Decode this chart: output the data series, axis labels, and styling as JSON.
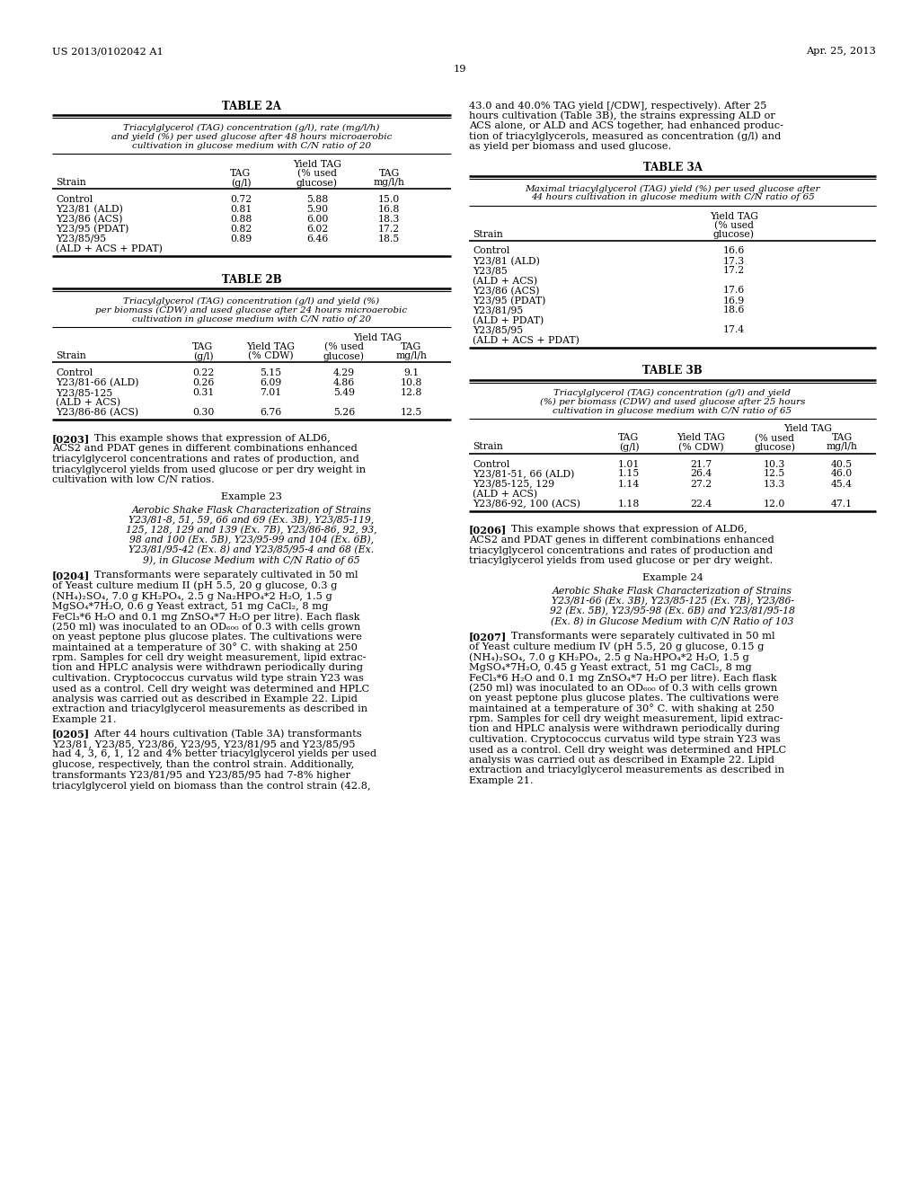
{
  "header_left": "US 2013/0102042 A1",
  "header_right": "Apr. 25, 2013",
  "page_number": "19",
  "background_color": "#ffffff",
  "table2a_title": "TABLE 2A",
  "table2a_subtitle_lines": [
    "Triacylglycerol (TAG) concentration (g/l), rate (mg/l/h)",
    "and yield (%) per used glucose after 48 hours microaerobic",
    "cultivation in glucose medium with C/N ratio of 20"
  ],
  "table2a_rows": [
    [
      "Control",
      "0.72",
      "5.88",
      "15.0"
    ],
    [
      "Y23/81 (ALD)",
      "0.81",
      "5.90",
      "16.8"
    ],
    [
      "Y23/86 (ACS)",
      "0.88",
      "6.00",
      "18.3"
    ],
    [
      "Y23/95 (PDAT)",
      "0.82",
      "6.02",
      "17.2"
    ],
    [
      "Y23/85/95",
      "0.89",
      "6.46",
      "18.5"
    ],
    [
      "(ALD + ACS + PDAT)",
      "",
      "",
      ""
    ]
  ],
  "table2b_title": "TABLE 2B",
  "table2b_subtitle_lines": [
    "Triacylglycerol (TAG) concentration (g/l) and yield (%)",
    "per biomass (CDW) and used glucose after 24 hours microaerobic",
    "cultivation in glucose medium with C/N ratio of 20"
  ],
  "table2b_rows": [
    [
      "Control",
      "0.22",
      "5.15",
      "4.29",
      "9.1"
    ],
    [
      "Y23/81-66 (ALD)",
      "0.26",
      "6.09",
      "4.86",
      "10.8"
    ],
    [
      "Y23/85-125",
      "0.31",
      "7.01",
      "5.49",
      "12.8"
    ],
    [
      "(ALD + ACS)",
      "",
      "",
      "",
      ""
    ],
    [
      "Y23/86-86 (ACS)",
      "0.30",
      "6.76",
      "5.26",
      "12.5"
    ]
  ],
  "para0203_lines": [
    "[0203]   This example shows that expression of ALD6,",
    "ACS2 and PDAT genes in different combinations enhanced",
    "triacylglycerol concentrations and rates of production, and",
    "triacylglycerol yields from used glucose or per dry weight in",
    "cultivation with low C/N ratios."
  ],
  "example23_title": "Example 23",
  "example23_lines": [
    "Aerobic Shake Flask Characterization of Strains",
    "Y23/81-8, 51, 59, 66 and 69 (Ex. 3B), Y23/85-119,",
    "125, 128, 129 and 139 (Ex. 7B), Y23/86-86, 92, 93,",
    "98 and 100 (Ex. 5B), Y23/95-99 and 104 (Ex. 6B),",
    "Y23/81/95-42 (Ex. 8) and Y23/85/95-4 and 68 (Ex.",
    "9), in Glucose Medium with C/N Ratio of 65"
  ],
  "para0204_lines": [
    "[0204]   Transformants were separately cultivated in 50 ml",
    "of Yeast culture medium II (pH 5.5, 20 g glucose, 0.3 g",
    "(NH₄)₂SO₄, 7.0 g KH₂PO₄, 2.5 g Na₂HPO₄*2 H₂O, 1.5 g",
    "MgSO₄*7H₂O, 0.6 g Yeast extract, 51 mg CaCl₂, 8 mg",
    "FeCl₃*6 H₂O and 0.1 mg ZnSO₄*7 H₂O per litre). Each flask",
    "(250 ml) was inoculated to an OD₆₀₀ of 0.3 with cells grown",
    "on yeast peptone plus glucose plates. The cultivations were",
    "maintained at a temperature of 30° C. with shaking at 250",
    "rpm. Samples for cell dry weight measurement, lipid extrac-",
    "tion and HPLC analysis were withdrawn periodically during",
    "cultivation. Cryptococcus curvatus wild type strain Y23 was",
    "used as a control. Cell dry weight was determined and HPLC",
    "analysis was carried out as described in Example 22. Lipid",
    "extraction and triacylglycerol measurements as described in",
    "Example 21."
  ],
  "para0205_lines": [
    "[0205]   After 44 hours cultivation (Table 3A) transformants",
    "Y23/81, Y23/85, Y23/86, Y23/95, Y23/81/95 and Y23/85/95",
    "had 4, 3, 6, 1, 12 and 4% better triacylglycerol yields per used",
    "glucose, respectively, than the control strain. Additionally,",
    "transformants Y23/81/95 and Y23/85/95 had 7-8% higher",
    "triacylglycerol yield on biomass than the control strain (42.8,"
  ],
  "right_para_top_lines": [
    "43.0 and 40.0% TAG yield [/CDW], respectively). After 25",
    "hours cultivation (Table 3B), the strains expressing ALD or",
    "ACS alone, or ALD and ACS together, had enhanced produc-",
    "tion of triacylglycerols, measured as concentration (g/l) and",
    "as yield per biomass and used glucose."
  ],
  "table3a_title": "TABLE 3A",
  "table3a_subtitle_lines": [
    "Maximal triacylglycerol (TAG) yield (%) per used glucose after",
    "44 hours cultivation in glucose medium with C/N ratio of 65"
  ],
  "table3a_rows": [
    [
      "Control",
      "16.6"
    ],
    [
      "Y23/81 (ALD)",
      "17.3"
    ],
    [
      "Y23/85",
      "17.2"
    ],
    [
      "(ALD + ACS)",
      ""
    ],
    [
      "Y23/86 (ACS)",
      "17.6"
    ],
    [
      "Y23/95 (PDAT)",
      "16.9"
    ],
    [
      "Y23/81/95",
      "18.6"
    ],
    [
      "(ALD + PDAT)",
      ""
    ],
    [
      "Y23/85/95",
      "17.4"
    ],
    [
      "(ALD + ACS + PDAT)",
      ""
    ]
  ],
  "table3b_title": "TABLE 3B",
  "table3b_subtitle_lines": [
    "Triacylglycerol (TAG) concentration (g/l) and yield",
    "(%) per biomass (CDW) and used glucose after 25 hours",
    "cultivation in glucose medium with C/N ratio of 65"
  ],
  "table3b_rows": [
    [
      "Control",
      "1.01",
      "21.7",
      "10.3",
      "40.5"
    ],
    [
      "Y23/81-51, 66 (ALD)",
      "1.15",
      "26.4",
      "12.5",
      "46.0"
    ],
    [
      "Y23/85-125, 129",
      "1.14",
      "27.2",
      "13.3",
      "45.4"
    ],
    [
      "(ALD + ACS)",
      "",
      "",
      "",
      ""
    ],
    [
      "Y23/86-92, 100 (ACS)",
      "1.18",
      "22.4",
      "12.0",
      "47.1"
    ]
  ],
  "para0206_lines": [
    "[0206]   This example shows that expression of ALD6,",
    "ACS2 and PDAT genes in different combinations enhanced",
    "triacylglycerol concentrations and rates of production and",
    "triacylglycerol yields from used glucose or per dry weight."
  ],
  "example24_title": "Example 24",
  "example24_lines": [
    "Aerobic Shake Flask Characterization of Strains",
    "Y23/81-66 (Ex. 3B), Y23/85-125 (Ex. 7B), Y23/86-",
    "92 (Ex. 5B), Y23/95-98 (Ex. 6B) and Y23/81/95-18",
    "(Ex. 8) in Glucose Medium with C/N Ratio of 103"
  ],
  "para0207_lines": [
    "[0207]   Transformants were separately cultivated in 50 ml",
    "of Yeast culture medium IV (pH 5.5, 20 g glucose, 0.15 g",
    "(NH₄)₂SO₄, 7.0 g KH₂PO₄, 2.5 g Na₂HPO₄*2 H₂O, 1.5 g",
    "MgSO₄*7H₂O, 0.45 g Yeast extract, 51 mg CaCl₂, 8 mg",
    "FeCl₃*6 H₂O and 0.1 mg ZnSO₄*7 H₂O per litre). Each flask",
    "(250 ml) was inoculated to an OD₆₀₀ of 0.3 with cells grown",
    "on yeast peptone plus glucose plates. The cultivations were",
    "maintained at a temperature of 30° C. with shaking at 250",
    "rpm. Samples for cell dry weight measurement, lipid extrac-",
    "tion and HPLC analysis were withdrawn periodically during",
    "cultivation. Cryptococcus curvatus wild type strain Y23 was",
    "used as a control. Cell dry weight was determined and HPLC",
    "analysis was carried out as described in Example 22. Lipid",
    "extraction and triacylglycerol measurements as described in",
    "Example 21."
  ]
}
